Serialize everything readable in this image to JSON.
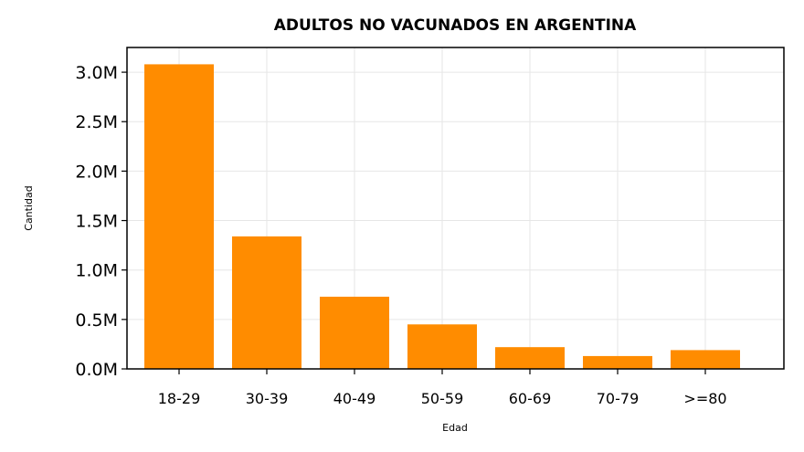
{
  "chart_data": {
    "type": "bar",
    "title": "ADULTOS NO VACUNADOS EN ARGENTINA",
    "xlabel": "Edad",
    "ylabel": "Cantidad",
    "categories": [
      "18-29",
      "30-39",
      "40-49",
      "50-59",
      "60-69",
      "70-79",
      ">=80"
    ],
    "values": [
      3080000,
      1340000,
      730000,
      450000,
      220000,
      130000,
      190000
    ],
    "ylim": [
      0,
      3250000
    ],
    "yticks": [
      0,
      500000,
      1000000,
      1500000,
      2000000,
      2500000,
      3000000
    ],
    "ytick_labels": [
      "0.0M",
      "0.5M",
      "1.0M",
      "1.5M",
      "2.0M",
      "2.5M",
      "3.0M"
    ],
    "grid": true,
    "bar_color": "#ff8c00"
  }
}
